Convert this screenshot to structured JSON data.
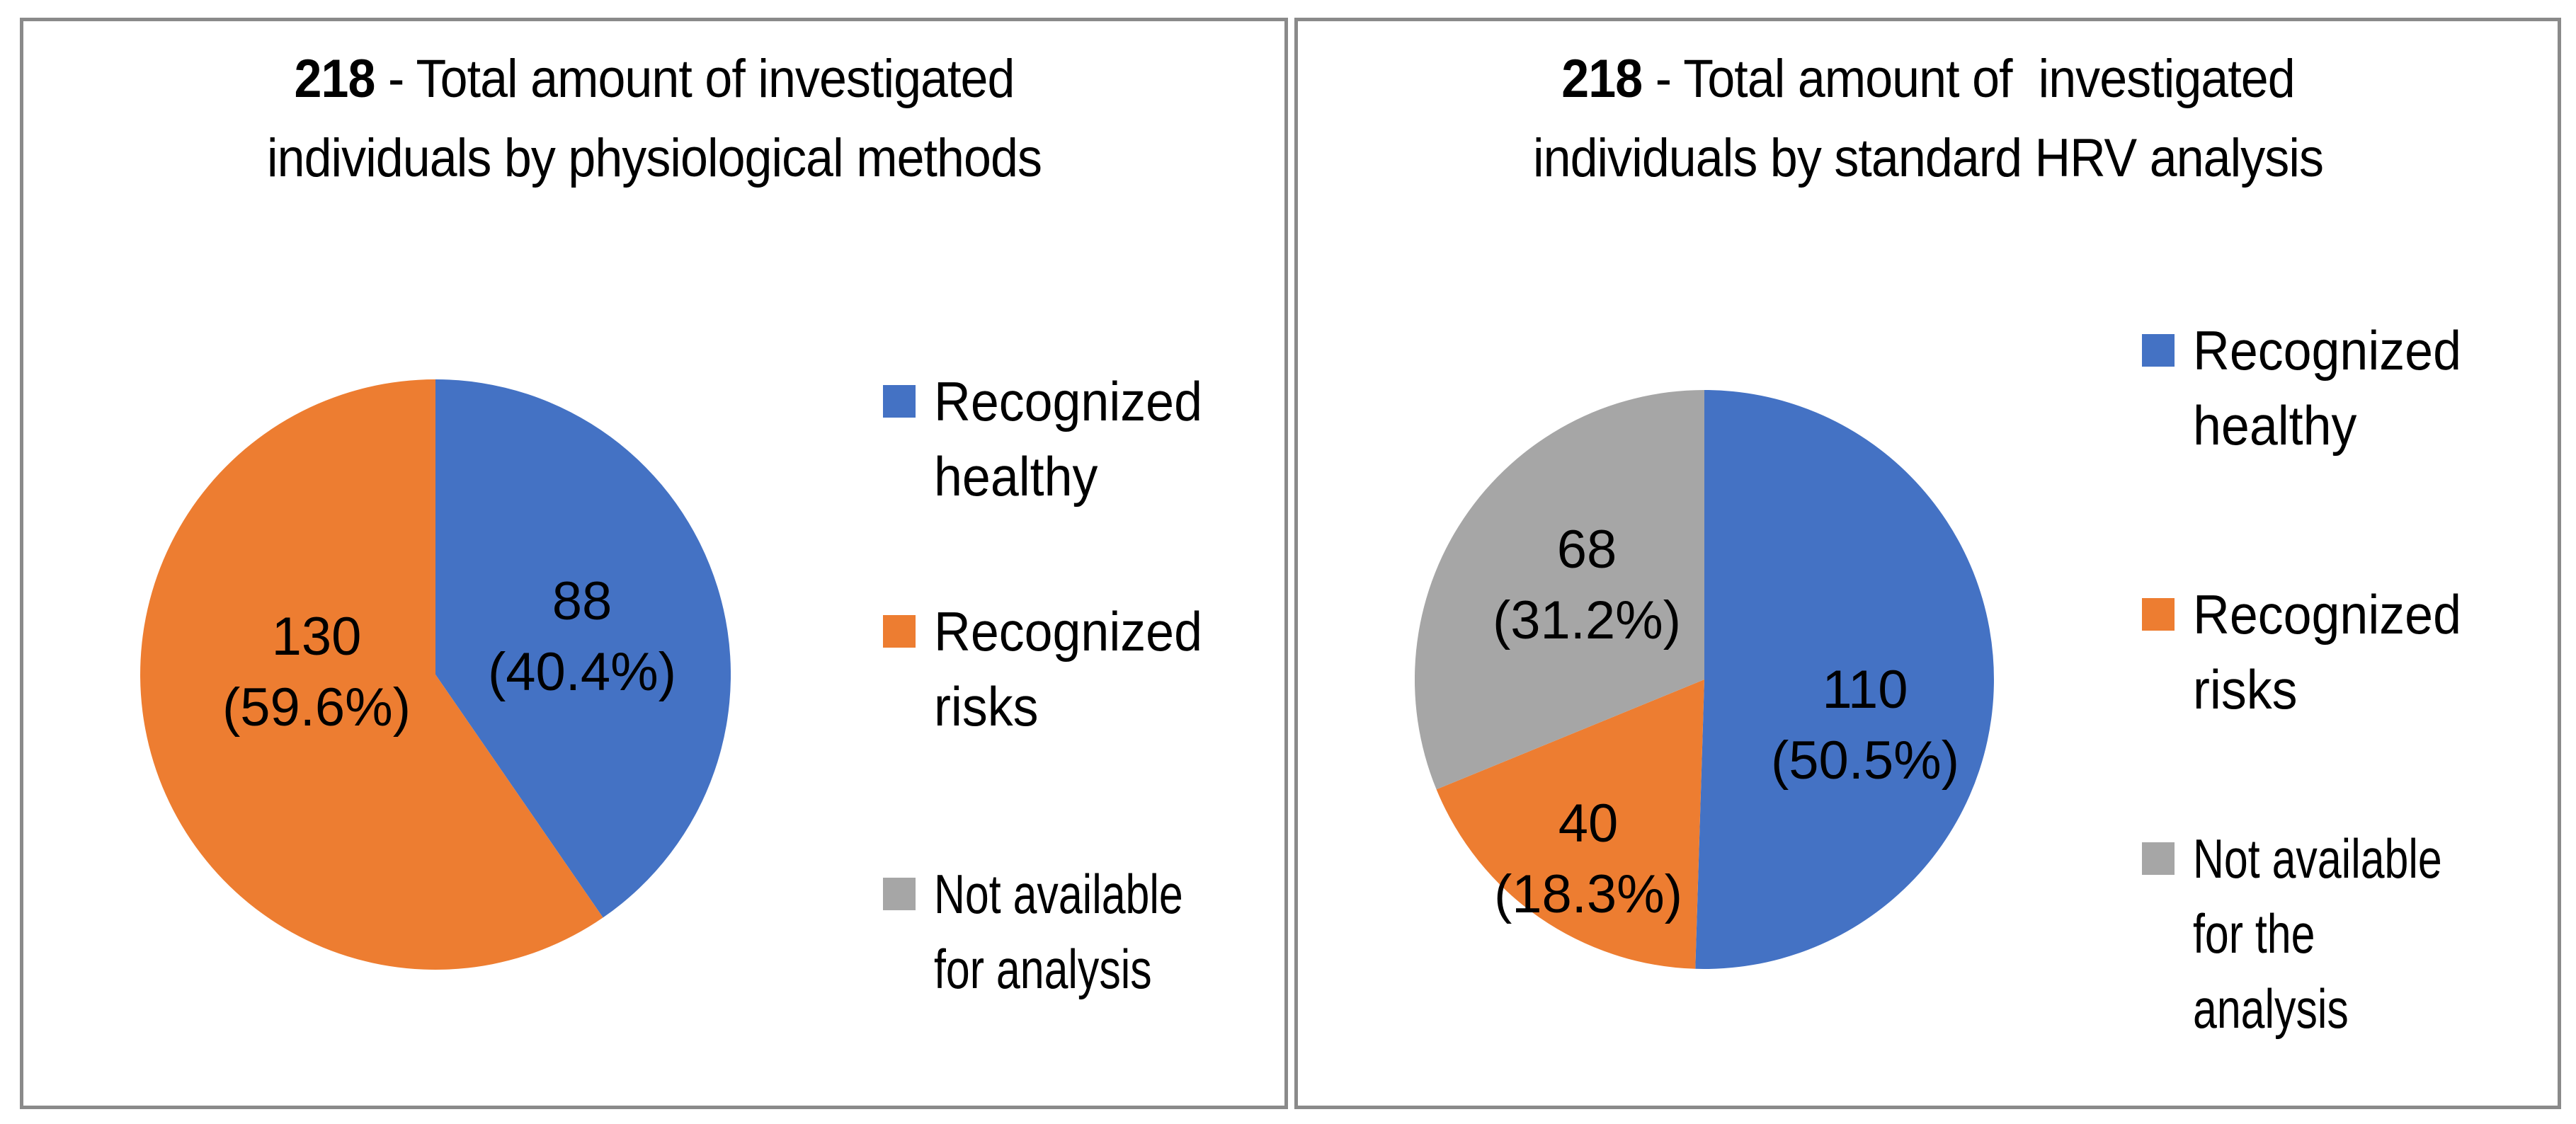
{
  "accent_colors": {
    "blue": "#4472C4",
    "orange": "#ED7D31",
    "gray": "#A6A6A6",
    "frame_gray": "#8a8a8a"
  },
  "chart_data": [
    {
      "type": "pie",
      "title": "218 - Total amount of investigated individuals by physiological methods",
      "total_shown_in_title": 218,
      "slices": [
        {
          "label": "Recognized healthy",
          "value": 88,
          "pct": 40.4,
          "color": "#4472C4"
        },
        {
          "label": "Recognized risks",
          "value": 130,
          "pct": 59.6,
          "color": "#ED7D31"
        }
      ],
      "legend": [
        "Recognized healthy",
        "Recognized risks",
        "Not available for analysis"
      ],
      "legend_position": "right",
      "data_label_format": "value (pct%)"
    },
    {
      "type": "pie",
      "title": "218 - Total amount of  investigated individuals by standard HRV analysis",
      "total_shown_in_title": 218,
      "slices": [
        {
          "label": "Recognized healthy",
          "value": 110,
          "pct": 50.5,
          "color": "#4472C4"
        },
        {
          "label": "Recognized risks",
          "value": 40,
          "pct": 18.3,
          "color": "#ED7D31"
        },
        {
          "label": "Not available for the analysis",
          "value": 68,
          "pct": 31.2,
          "color": "#A6A6A6"
        }
      ],
      "legend": [
        "Recognized healthy",
        "Recognized risks",
        "Not available for the analysis"
      ],
      "legend_position": "right",
      "data_label_format": "value (pct%)"
    }
  ],
  "panels": [
    {
      "title": {
        "number": "218",
        "rest": " - Total amount of investigated individuals by physiological methods"
      },
      "labels": [
        {
          "value": "88",
          "pct": "(40.4%)"
        },
        {
          "value": "130",
          "pct": "(59.6%)"
        }
      ],
      "legend": [
        {
          "label": "Recognized\nhealthy",
          "color": "#4472C4"
        },
        {
          "label": "Recognized\nrisks",
          "color": "#ED7D31"
        },
        {
          "label": "Not available\nfor analysis",
          "color": "#A6A6A6"
        }
      ]
    },
    {
      "title": {
        "number": "218",
        "rest": " - Total amount of  investigated individuals by standard HRV analysis"
      },
      "labels": [
        {
          "value": "110",
          "pct": "(50.5%)"
        },
        {
          "value": "40",
          "pct": "(18.3%)"
        },
        {
          "value": "68",
          "pct": "(31.2%)"
        }
      ],
      "legend": [
        {
          "label": "Recognized\nhealthy",
          "color": "#4472C4"
        },
        {
          "label": "Recognized\nrisks",
          "color": "#ED7D31"
        },
        {
          "label": "Not available\nfor the\nanalysis",
          "color": "#A6A6A6"
        }
      ]
    }
  ]
}
